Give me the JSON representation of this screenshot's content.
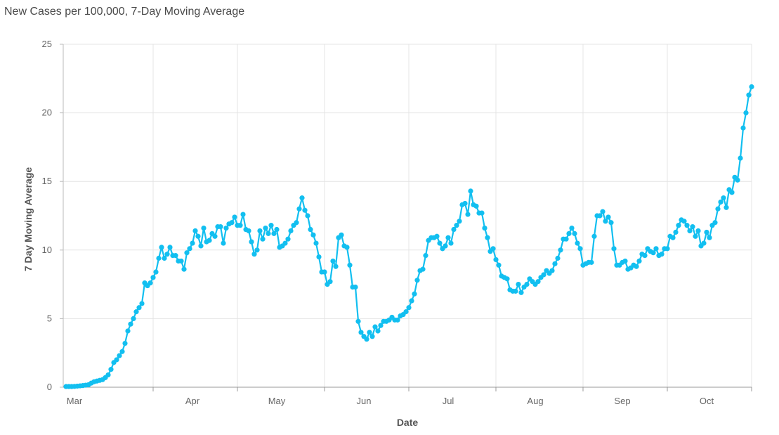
{
  "chart_data": {
    "type": "line",
    "title": "New Cases per 100,000, 7-Day Moving Average",
    "xlabel": "Date",
    "ylabel": "7 Day Moving Average",
    "ylim": [
      0,
      25
    ],
    "yticks": [
      0,
      5,
      10,
      15,
      20,
      25
    ],
    "xlim": [
      "2020-02-29",
      "2020-10-31"
    ],
    "x_tick_labels": [
      {
        "label": "Mar",
        "date": "2020-03-04"
      },
      {
        "label": "Apr",
        "date": "2020-04-15"
      },
      {
        "label": "May",
        "date": "2020-05-15"
      },
      {
        "label": "Jun",
        "date": "2020-06-15"
      },
      {
        "label": "Jul",
        "date": "2020-07-15"
      },
      {
        "label": "Aug",
        "date": "2020-08-15"
      },
      {
        "label": "Sep",
        "date": "2020-09-15"
      },
      {
        "label": "Oct",
        "date": "2020-10-15"
      }
    ],
    "x_tick_dates": [
      "2020-04-01",
      "2020-05-01",
      "2020-06-01",
      "2020-07-01",
      "2020-08-01",
      "2020-09-01",
      "2020-10-01",
      "2020-10-31"
    ],
    "grid": true,
    "line_color": "#12bff0",
    "series": [
      {
        "x_start": "2020-03-01",
        "x_step": "1 day",
        "values": [
          0.05,
          0.05,
          0.05,
          0.06,
          0.08,
          0.1,
          0.12,
          0.15,
          0.18,
          0.3,
          0.4,
          0.45,
          0.5,
          0.55,
          0.7,
          0.9,
          1.3,
          1.8,
          2.0,
          2.3,
          2.6,
          3.2,
          4.1,
          4.6,
          5.0,
          5.5,
          5.8,
          6.1,
          7.6,
          7.4,
          7.6,
          8.0,
          8.4,
          9.4,
          10.2,
          9.4,
          9.7,
          10.2,
          9.6,
          9.6,
          9.2,
          9.2,
          8.6,
          9.8,
          10.1,
          10.5,
          11.4,
          11.0,
          10.3,
          11.6,
          10.6,
          10.7,
          11.2,
          11.0,
          11.7,
          11.7,
          10.5,
          11.6,
          11.9,
          12.0,
          12.4,
          11.8,
          11.8,
          12.6,
          11.5,
          11.4,
          10.6,
          9.7,
          10.0,
          11.4,
          10.8,
          11.6,
          11.2,
          11.8,
          11.2,
          11.5,
          10.2,
          10.3,
          10.5,
          10.8,
          11.4,
          11.8,
          12.0,
          13.0,
          13.8,
          12.9,
          12.5,
          11.5,
          11.1,
          10.5,
          9.5,
          8.4,
          8.4,
          7.5,
          7.7,
          9.2,
          8.8,
          10.9,
          11.1,
          10.3,
          10.2,
          8.9,
          7.3,
          7.3,
          4.8,
          4.0,
          3.7,
          3.5,
          4.0,
          3.7,
          4.4,
          4.1,
          4.5,
          4.8,
          4.8,
          4.9,
          5.1,
          4.9,
          4.9,
          5.2,
          5.3,
          5.5,
          5.8,
          6.3,
          6.8,
          7.8,
          8.5,
          8.6,
          9.6,
          10.7,
          10.9,
          10.9,
          11.0,
          10.5,
          10.1,
          10.3,
          10.9,
          10.5,
          11.5,
          11.8,
          12.1,
          13.3,
          13.4,
          12.6,
          14.3,
          13.3,
          13.2,
          12.7,
          12.7,
          11.6,
          10.9,
          9.9,
          10.1,
          9.3,
          8.9,
          8.1,
          8.0,
          7.9,
          7.1,
          7.0,
          7.0,
          7.5,
          6.9,
          7.3,
          7.5,
          7.9,
          7.7,
          7.5,
          7.7,
          8.0,
          8.2,
          8.5,
          8.3,
          8.5,
          9.0,
          9.4,
          10.0,
          10.8,
          10.8,
          11.2,
          11.6,
          11.2,
          10.5,
          10.1,
          8.9,
          9.0,
          9.1,
          9.1,
          11.0,
          12.5,
          12.5,
          12.8,
          12.1,
          12.4,
          12.0,
          10.1,
          8.9,
          8.9,
          9.1,
          9.2,
          8.6,
          8.7,
          8.9,
          8.8,
          9.2,
          9.7,
          9.6,
          10.1,
          9.9,
          9.8,
          10.1,
          9.6,
          9.7,
          10.1,
          10.1,
          11.0,
          10.9,
          11.3,
          11.8,
          12.2,
          12.1,
          11.8,
          11.4,
          11.7,
          11.0,
          11.4,
          10.3,
          10.5,
          11.3,
          10.9,
          11.8,
          12.0,
          13.0,
          13.5,
          13.8,
          13.1,
          14.4,
          14.2,
          15.3,
          15.1,
          16.7,
          18.9,
          20.0,
          21.3,
          21.9
        ]
      }
    ]
  }
}
